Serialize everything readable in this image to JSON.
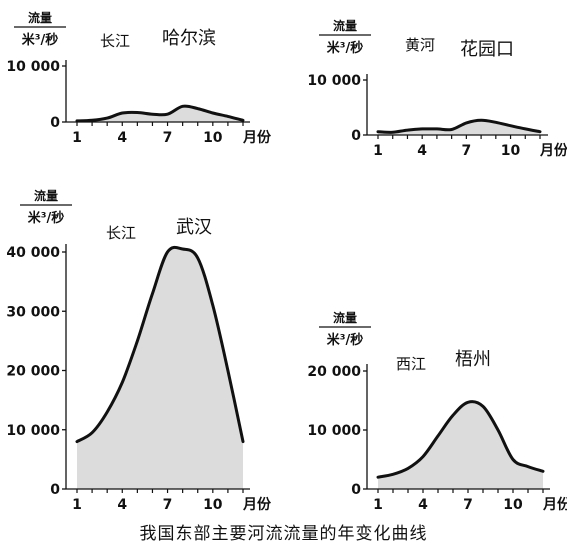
{
  "figure_caption": "我国东部主要河流流量的年变化曲线",
  "chart_data": [
    {
      "type": "area",
      "river": "长江",
      "station": "哈尔滨",
      "ylabel_top": "流量",
      "ylabel_bottom": "米³/秒",
      "xlabel": "月份",
      "x": [
        1,
        2,
        3,
        4,
        5,
        6,
        7,
        8,
        9,
        10,
        11,
        12
      ],
      "xticks": [
        "1",
        "4",
        "7",
        "10"
      ],
      "values": [
        200,
        300,
        700,
        1600,
        1700,
        1400,
        1400,
        2800,
        2400,
        1600,
        1000,
        300
      ],
      "ylim": [
        0,
        10000
      ],
      "yticks": [
        0,
        10000
      ],
      "ytick_labels": [
        "0",
        "10 000"
      ],
      "fill_color": "#dcdcdc",
      "line_color": "#111111"
    },
    {
      "type": "area",
      "river": "黄河",
      "station": "花园口",
      "ylabel_top": "流量",
      "ylabel_bottom": "米³/秒",
      "xlabel": "月份",
      "x": [
        1,
        2,
        3,
        4,
        5,
        6,
        7,
        8,
        9,
        10,
        11,
        12
      ],
      "xticks": [
        "1",
        "4",
        "7",
        "10"
      ],
      "values": [
        600,
        500,
        900,
        1100,
        1100,
        1000,
        2200,
        2700,
        2300,
        1700,
        1100,
        600
      ],
      "ylim": [
        0,
        10000
      ],
      "yticks": [
        0,
        10000
      ],
      "ytick_labels": [
        "0",
        "10 000"
      ],
      "fill_color": "#dcdcdc",
      "line_color": "#111111"
    },
    {
      "type": "area",
      "river": "长江",
      "station": "武汉",
      "ylabel_top": "流量",
      "ylabel_bottom": "米³/秒",
      "xlabel": "月份",
      "x": [
        1,
        2,
        3,
        4,
        5,
        6,
        7,
        8,
        9,
        10,
        11,
        12
      ],
      "xticks": [
        "1",
        "4",
        "7",
        "10"
      ],
      "values": [
        8000,
        9500,
        13000,
        18000,
        25000,
        33000,
        40000,
        40500,
        39000,
        31000,
        20000,
        8000
      ],
      "ylim": [
        0,
        40000
      ],
      "yticks": [
        0,
        10000,
        20000,
        30000,
        40000
      ],
      "ytick_labels": [
        "0",
        "10 000",
        "20 000",
        "30 000",
        "40 000"
      ],
      "fill_color": "#dcdcdc",
      "line_color": "#111111"
    },
    {
      "type": "area",
      "river": "西江",
      "station": "梧州",
      "ylabel_top": "流量",
      "ylabel_bottom": "米³/秒",
      "xlabel": "月份",
      "x": [
        1,
        2,
        3,
        4,
        5,
        6,
        7,
        8,
        9,
        10,
        11,
        12
      ],
      "xticks": [
        "1",
        "4",
        "7",
        "10"
      ],
      "values": [
        2000,
        2500,
        3500,
        5500,
        9000,
        12500,
        14700,
        14000,
        10000,
        5000,
        3800,
        3000
      ],
      "ylim": [
        0,
        20000
      ],
      "yticks": [
        0,
        10000,
        20000
      ],
      "ytick_labels": [
        "0",
        "10 000",
        "20 000"
      ],
      "fill_color": "#dcdcdc",
      "line_color": "#111111"
    }
  ]
}
